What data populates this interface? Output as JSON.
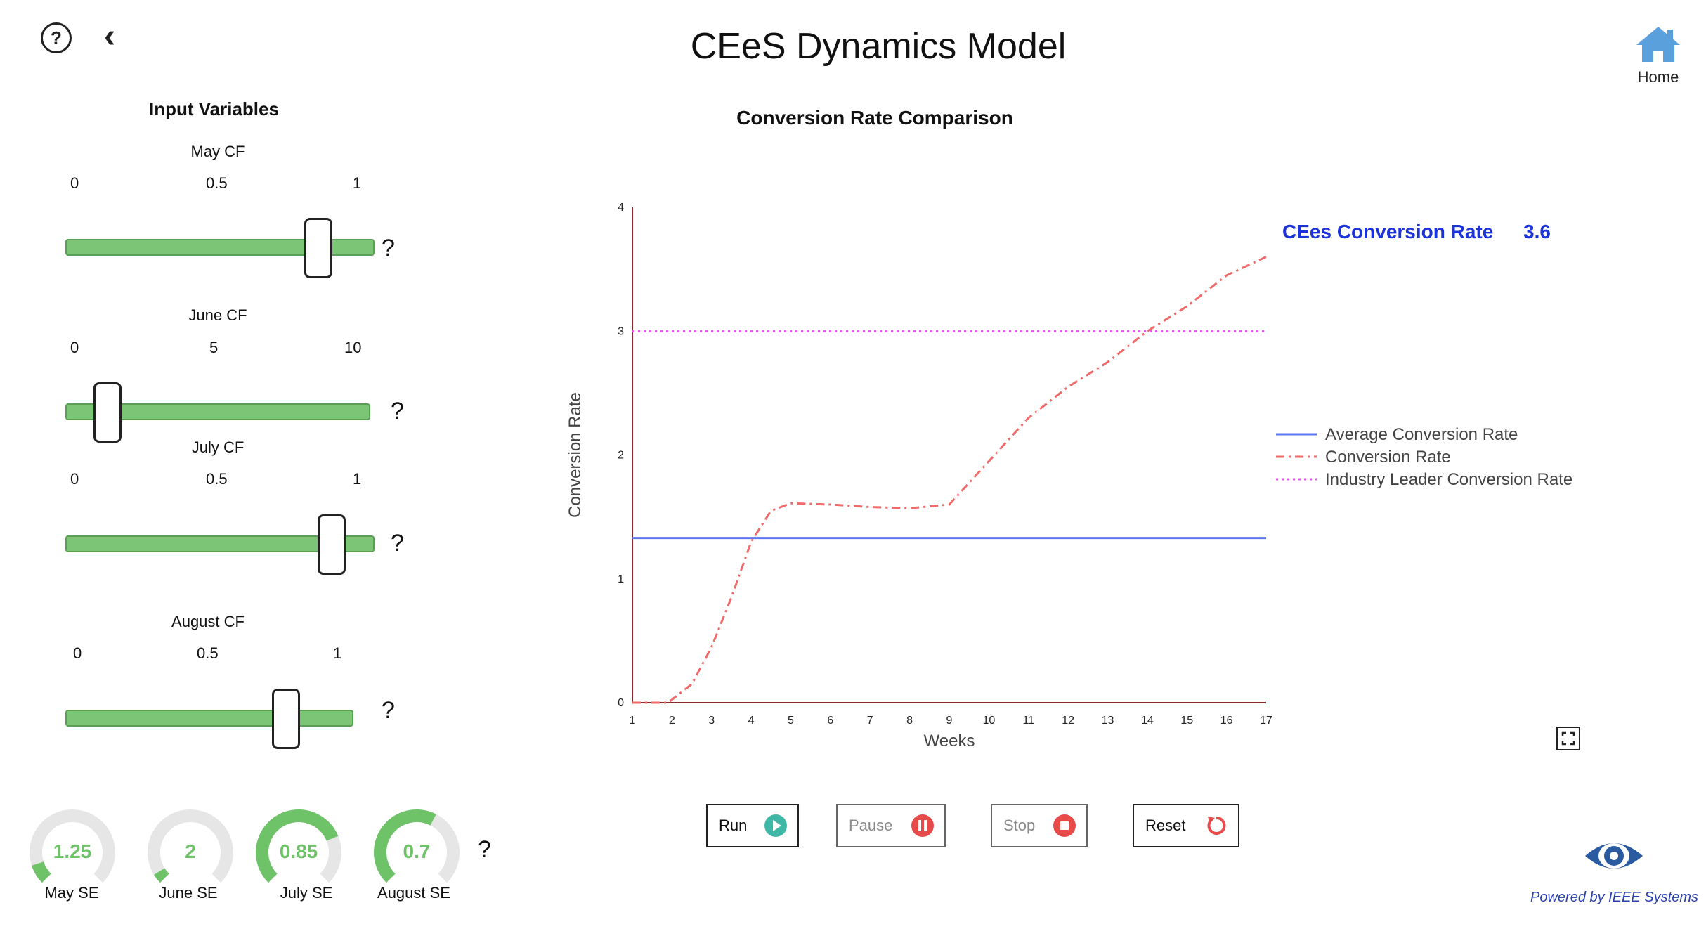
{
  "header": {
    "title": "CEeS Dynamics Model",
    "help_glyph": "?",
    "back_glyph": "‹",
    "home_label": "Home"
  },
  "inputs": {
    "title": "Input Variables",
    "sliders": [
      {
        "label": "May CF",
        "ticks": [
          "0",
          "0.5",
          "1"
        ],
        "min": 0,
        "max": 1,
        "value": 0.85,
        "help": "?"
      },
      {
        "label": "June CF",
        "ticks": [
          "0",
          "5",
          "10"
        ],
        "min": 0,
        "max": 10,
        "value": 1.35,
        "help": "?"
      },
      {
        "label": "July CF",
        "ticks": [
          "0",
          "0.5",
          "1"
        ],
        "min": 0,
        "max": 1,
        "value": 0.9,
        "help": "?"
      },
      {
        "label": "August CF",
        "ticks": [
          "0",
          "0.5",
          "1"
        ],
        "min": 0,
        "max": 1,
        "value": 0.78,
        "help": "?"
      }
    ]
  },
  "gauges": {
    "help": "?",
    "items": [
      {
        "label": "May SE",
        "value": "1.25",
        "fill": 0.1
      },
      {
        "label": "June SE",
        "value": "2",
        "fill": 0.05
      },
      {
        "label": "July SE",
        "value": "0.85",
        "fill": 0.75
      },
      {
        "label": "August SE",
        "value": "0.7",
        "fill": 0.6
      }
    ]
  },
  "readout": {
    "label": "CEes Conversion Rate",
    "value": "3.6"
  },
  "controls": {
    "run": "Run",
    "pause": "Pause",
    "stop": "Stop",
    "reset": "Reset"
  },
  "footer": {
    "powered": "Powered by IEEE Systems"
  },
  "colors": {
    "slider_fill": "#7cc576",
    "gauge_fill": "#6ec267",
    "gauge_bg": "#e6e6e6",
    "accent_blue": "#1c33d8"
  },
  "icons": {
    "help": "question-circle-icon",
    "back": "chevron-left-icon",
    "home": "home-icon",
    "fullscreen": "fullscreen-icon",
    "logo": "eye-logo-icon"
  },
  "chart_data": {
    "type": "line",
    "title": "Conversion Rate Comparison",
    "xlabel": "Weeks",
    "ylabel": "Conversion Rate",
    "xlim": [
      1,
      17
    ],
    "ylim": [
      0,
      4
    ],
    "xticks": [
      "1",
      "2",
      "3",
      "4",
      "5",
      "6",
      "7",
      "8",
      "9",
      "10",
      "11",
      "12",
      "13",
      "14",
      "15",
      "16",
      "17"
    ],
    "yticks": [
      "0",
      "1",
      "2",
      "3",
      "4"
    ],
    "legend_position": "right",
    "series": [
      {
        "name": "Average Conversion Rate",
        "style": "solid",
        "color": "#5b78f0",
        "x": [
          1,
          17
        ],
        "y": [
          1.33,
          1.33
        ]
      },
      {
        "name": "Conversion Rate",
        "style": "dashdot",
        "color": "#f06a6a",
        "x": [
          1,
          1.9,
          2.5,
          3,
          3.5,
          4,
          4.5,
          5,
          6,
          7,
          8,
          9,
          10,
          11,
          12,
          13,
          14,
          15,
          16,
          17
        ],
        "y": [
          0,
          0,
          0.15,
          0.45,
          0.85,
          1.3,
          1.55,
          1.61,
          1.6,
          1.58,
          1.57,
          1.6,
          1.95,
          2.3,
          2.55,
          2.75,
          3.0,
          3.2,
          3.45,
          3.6
        ]
      },
      {
        "name": "Industry Leader Conversion Rate",
        "style": "dotted",
        "color": "#e05ce8",
        "x": [
          1,
          17
        ],
        "y": [
          3.0,
          3.0
        ]
      }
    ]
  }
}
